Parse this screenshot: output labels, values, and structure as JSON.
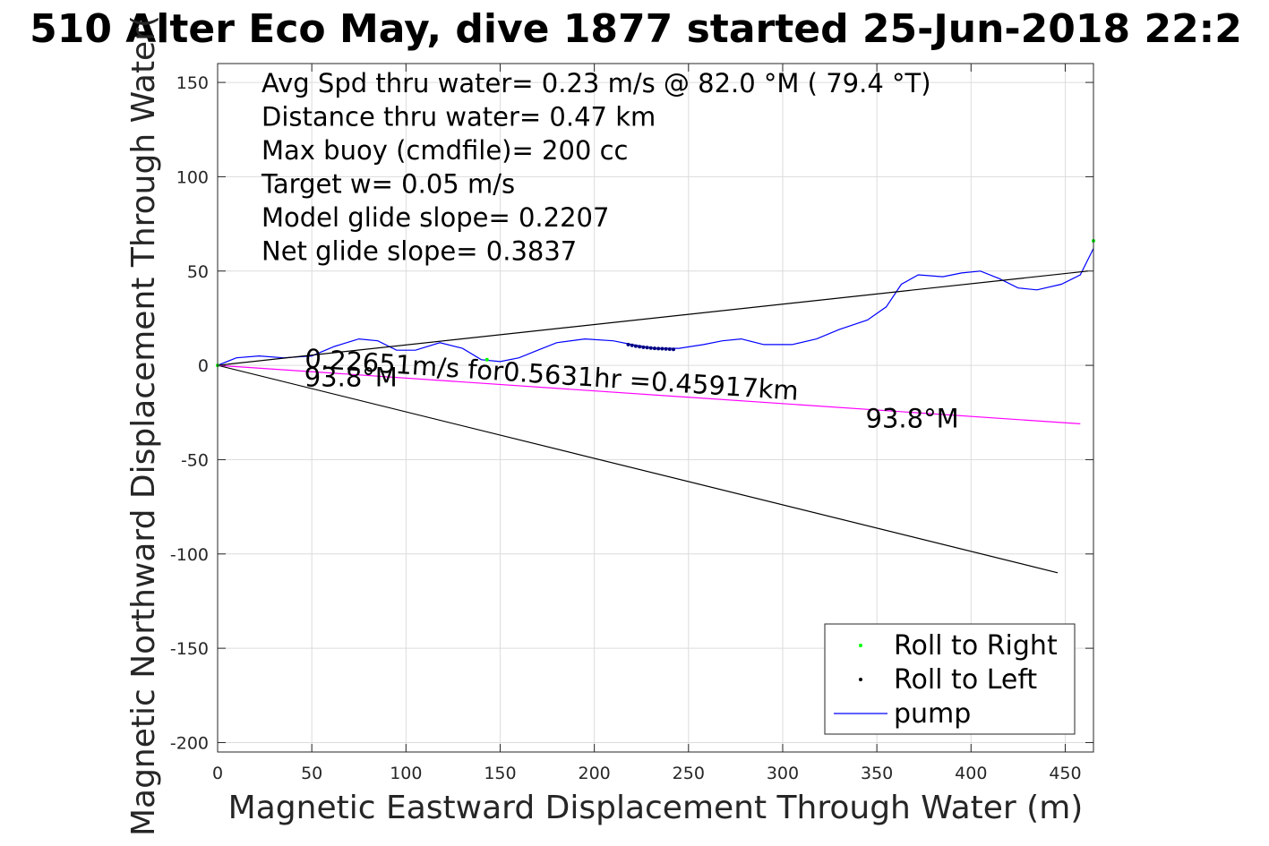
{
  "chart_data": {
    "type": "line",
    "title": "510 Alter Eco May, dive 1877 started 25-Jun-2018 22:2",
    "xlabel": "Magnetic Eastward Displacement Through Water (m)",
    "ylabel": "Magnetic Northward Displacement Through Water(",
    "xlim": [
      0,
      465
    ],
    "ylim": [
      -205,
      160
    ],
    "xticks": [
      0,
      50,
      100,
      150,
      200,
      250,
      300,
      350,
      400,
      450
    ],
    "yticks": [
      -200,
      -150,
      -100,
      -50,
      0,
      50,
      100,
      150
    ],
    "grid": true,
    "legend_placement": "bottom-right",
    "stats": [
      "Avg Spd thru water=  0.23 m/s @  82.0 °M ( 79.4 °T)",
      "Distance thru water=  0.47 km",
      "Max buoy (cmdfile)= 200 cc",
      "Target w= 0.05 m/s",
      "Model glide slope= 0.2207",
      "Net glide slope= 0.3837"
    ],
    "annotations": {
      "speed_label": "0.22651m/s for0.5631hr =0.45917km",
      "heading_start": "93.8°M",
      "heading_end": "93.8°M"
    },
    "series": [
      {
        "name": "Roll to Right",
        "type": "scatter",
        "color": "#00ff00",
        "points": [
          [
            0,
            0
          ],
          [
            143,
            3
          ],
          [
            465,
            66
          ]
        ]
      },
      {
        "name": "Roll to Left",
        "type": "scatter",
        "color": "#000080",
        "points": [
          [
            218,
            11
          ],
          [
            220,
            10.6
          ],
          [
            222,
            10.2
          ],
          [
            224,
            9.9
          ],
          [
            226,
            9.6
          ],
          [
            228,
            9.4
          ],
          [
            230,
            9.2
          ],
          [
            232,
            9.0
          ],
          [
            234,
            8.9
          ],
          [
            236,
            8.8
          ],
          [
            238,
            8.7
          ],
          [
            240,
            8.6
          ],
          [
            242,
            8.5
          ]
        ]
      },
      {
        "name": "pump",
        "type": "line",
        "color": "#0000ff",
        "points": [
          [
            0,
            0
          ],
          [
            10,
            4
          ],
          [
            22,
            5
          ],
          [
            35,
            4
          ],
          [
            50,
            5
          ],
          [
            62,
            10
          ],
          [
            75,
            14
          ],
          [
            85,
            13
          ],
          [
            95,
            8
          ],
          [
            105,
            8
          ],
          [
            118,
            12
          ],
          [
            130,
            9
          ],
          [
            140,
            3
          ],
          [
            150,
            2
          ],
          [
            160,
            4
          ],
          [
            170,
            8
          ],
          [
            180,
            12
          ],
          [
            195,
            14
          ],
          [
            210,
            13
          ],
          [
            220,
            11
          ],
          [
            232,
            9
          ],
          [
            245,
            9
          ],
          [
            258,
            11
          ],
          [
            268,
            13
          ],
          [
            278,
            14
          ],
          [
            290,
            11
          ],
          [
            305,
            11
          ],
          [
            318,
            14
          ],
          [
            330,
            19
          ],
          [
            345,
            24
          ],
          [
            355,
            31
          ],
          [
            363,
            43
          ],
          [
            372,
            48
          ],
          [
            385,
            47
          ],
          [
            395,
            49
          ],
          [
            405,
            50
          ],
          [
            415,
            46
          ],
          [
            425,
            41
          ],
          [
            435,
            40
          ],
          [
            448,
            43
          ],
          [
            458,
            48
          ],
          [
            465,
            62
          ]
        ]
      },
      {
        "name": "",
        "type": "line",
        "color": "#000000",
        "points": [
          [
            0,
            0
          ],
          [
            462,
            50
          ]
        ]
      },
      {
        "name": "",
        "type": "line",
        "color": "#000000",
        "points": [
          [
            0,
            0
          ],
          [
            446,
            -110
          ]
        ]
      },
      {
        "name": "",
        "type": "line",
        "color": "#ff00ff",
        "points": [
          [
            0,
            0
          ],
          [
            458,
            -31
          ]
        ]
      }
    ],
    "legend": [
      {
        "name": "Roll to Right",
        "marker": "dot",
        "color": "#00ff00"
      },
      {
        "name": "Roll to Left",
        "marker": "dot",
        "color": "#000000"
      },
      {
        "name": "pump",
        "marker": "line",
        "color": "#0000ff"
      }
    ]
  }
}
